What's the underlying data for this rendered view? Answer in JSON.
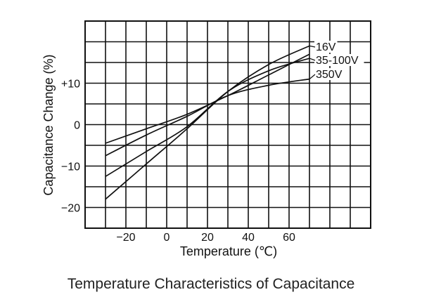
{
  "chart_data": {
    "type": "line",
    "title": "Temperature Characteristics of Capacitance",
    "xlabel": "Temperature (℃)",
    "ylabel": "Capacitance Change (%)",
    "xlim": [
      -40,
      100
    ],
    "ylim": [
      -25,
      25
    ],
    "x_ticks": [
      -20,
      0,
      20,
      40,
      60
    ],
    "x_tick_labels": [
      "−20",
      "0",
      "20",
      "40",
      "60"
    ],
    "y_ticks": [
      -20,
      -10,
      0,
      10
    ],
    "y_tick_labels": [
      "−20",
      "−10",
      "0",
      "+10"
    ],
    "grid": true,
    "series": [
      {
        "name": "16V",
        "x": [
          -30,
          -10,
          10,
          30,
          50,
          70
        ],
        "y": [
          -18,
          -9.5,
          -1,
          8,
          14.5,
          19
        ]
      },
      {
        "name": "35-100V",
        "x": [
          -30,
          -10,
          10,
          30,
          50,
          70
        ],
        "y": [
          -12.5,
          -6.5,
          -0.5,
          8,
          13,
          16
        ]
      },
      {
        "name": "350V",
        "x": [
          -30,
          -10,
          10,
          30,
          50,
          70
        ],
        "y": [
          -7.5,
          -2.5,
          2,
          7,
          9.5,
          11
        ]
      },
      {
        "x": [
          -30,
          -10,
          10,
          30,
          50,
          70
        ],
        "y": [
          -4.5,
          -1,
          2.5,
          7,
          12,
          17
        ]
      }
    ],
    "colors": {
      "line": "#111111",
      "grid": "#111111",
      "border": "#111111"
    }
  }
}
